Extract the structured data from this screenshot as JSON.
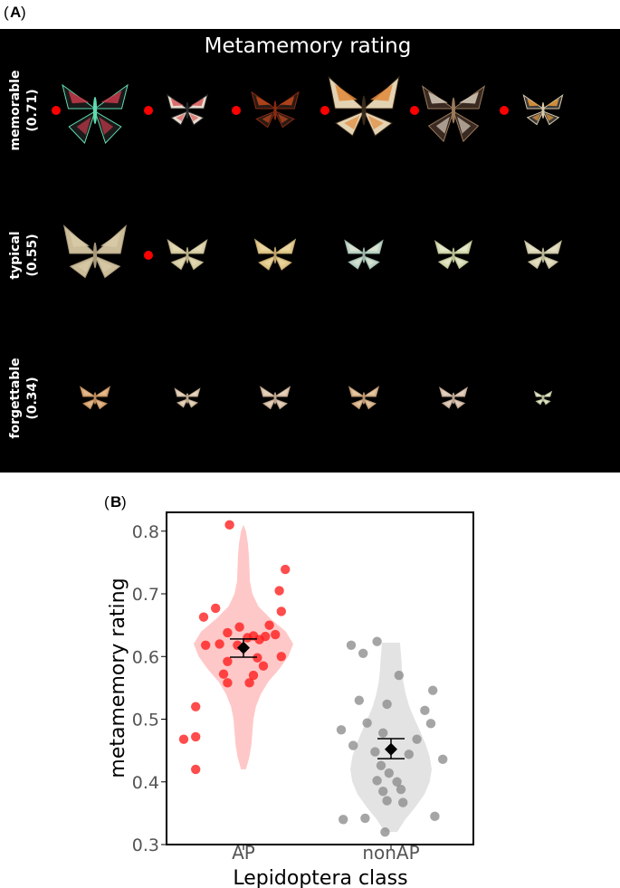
{
  "panel_a": {
    "letter": "A",
    "title": "Metamemory rating",
    "rows": [
      {
        "label": "memorable",
        "value": "(0.71)",
        "items": [
          {
            "palette": [
              "#1a1a1a",
              "#c83a4a",
              "#5fdcb0"
            ],
            "size": 1.0,
            "shape": "swallowtail",
            "red_dot": true
          },
          {
            "palette": [
              "#e6ddd0",
              "#d85a5a",
              "#2a2a2a"
            ],
            "size": 0.62,
            "shape": "round",
            "red_dot": true
          },
          {
            "palette": [
              "#2a1a14",
              "#c24a1c",
              "#8a2a10"
            ],
            "size": 0.72,
            "shape": "round",
            "red_dot": true
          },
          {
            "palette": [
              "#e3d3b3",
              "#e08a3a",
              "#3a2a1a"
            ],
            "size": 1.08,
            "shape": "big",
            "red_dot": true
          },
          {
            "palette": [
              "#3a2a22",
              "#d8ccbc",
              "#9a7a5a"
            ],
            "size": 0.95,
            "shape": "swallowtail",
            "red_dot": true
          },
          {
            "palette": [
              "#3a3a3a",
              "#e89a3a",
              "#d8c8a8"
            ],
            "size": 0.6,
            "shape": "round",
            "red_dot": true
          }
        ]
      },
      {
        "label": "typical",
        "value": "(0.55)",
        "items": [
          {
            "palette": [
              "#cbbd9a",
              "#d9caa8",
              "#a8987a"
            ],
            "size": 0.95,
            "shape": "big",
            "red_dot": false
          },
          {
            "palette": [
              "#d9cfa6",
              "#e3d9b4",
              "#b6aa86"
            ],
            "size": 0.6,
            "shape": "round",
            "red_dot": true
          },
          {
            "palette": [
              "#e0c88a",
              "#ecd7a4",
              "#bba06a"
            ],
            "size": 0.62,
            "shape": "round",
            "red_dot": false
          },
          {
            "palette": [
              "#bdd6c8",
              "#e0e4d2",
              "#9ab4a8"
            ],
            "size": 0.58,
            "shape": "round",
            "red_dot": false
          },
          {
            "palette": [
              "#d6dab0",
              "#e8ead0",
              "#b8bc90"
            ],
            "size": 0.56,
            "shape": "round",
            "red_dot": false
          },
          {
            "palette": [
              "#d8d4b4",
              "#e8e2c6",
              "#bab496"
            ],
            "size": 0.56,
            "shape": "round",
            "red_dot": false
          }
        ]
      },
      {
        "label": "forgettable",
        "value": "(0.34)",
        "items": [
          {
            "palette": [
              "#d9a878",
              "#e6bc90",
              "#b88858"
            ],
            "size": 0.45,
            "shape": "round",
            "red_dot": false
          },
          {
            "palette": [
              "#dcc8ae",
              "#e8d8c2",
              "#b8a48a"
            ],
            "size": 0.38,
            "shape": "round",
            "red_dot": false
          },
          {
            "palette": [
              "#dcc4ac",
              "#e8d4bc",
              "#b8a08a"
            ],
            "size": 0.45,
            "shape": "round",
            "red_dot": false
          },
          {
            "palette": [
              "#d8b48c",
              "#e8caa4",
              "#b89470"
            ],
            "size": 0.45,
            "shape": "round",
            "red_dot": false
          },
          {
            "palette": [
              "#d8c2b0",
              "#e6d2c2",
              "#b8a290"
            ],
            "size": 0.42,
            "shape": "round",
            "red_dot": false
          },
          {
            "palette": [
              "#d8dcb8",
              "#e8ead2",
              "#b8bc98"
            ],
            "size": 0.26,
            "shape": "round",
            "red_dot": false
          }
        ]
      }
    ]
  },
  "chart_data": {
    "type": "scatter",
    "panel_letter": "B",
    "title": "",
    "xlabel": "Lepidoptera class",
    "ylabel": "metamemory rating",
    "ylim": [
      0.3,
      0.83
    ],
    "yticks": [
      0.3,
      0.4,
      0.5,
      0.6,
      0.7,
      0.8
    ],
    "ytick_labels": [
      "0.3",
      "0.4",
      "0.5",
      "0.6",
      "0.7",
      "0.8"
    ],
    "categories": [
      "AP",
      "nonAP"
    ],
    "grid": false,
    "series": [
      {
        "category": "AP",
        "color": "#ff1a1a",
        "violin_color": "#ffc8c8",
        "mean": 0.614,
        "error": [
          0.599,
          0.628
        ],
        "violin": {
          "range": [
            0.42,
            0.81
          ],
          "profile": [
            [
              0.42,
              0.05
            ],
            [
              0.44,
              0.12
            ],
            [
              0.46,
              0.16
            ],
            [
              0.48,
              0.18
            ],
            [
              0.5,
              0.2
            ],
            [
              0.52,
              0.25
            ],
            [
              0.54,
              0.35
            ],
            [
              0.56,
              0.5
            ],
            [
              0.58,
              0.72
            ],
            [
              0.6,
              0.9
            ],
            [
              0.62,
              1.0
            ],
            [
              0.64,
              0.85
            ],
            [
              0.66,
              0.55
            ],
            [
              0.68,
              0.3
            ],
            [
              0.7,
              0.18
            ],
            [
              0.72,
              0.13
            ],
            [
              0.74,
              0.12
            ],
            [
              0.76,
              0.11
            ],
            [
              0.78,
              0.09
            ],
            [
              0.8,
              0.05
            ],
            [
              0.81,
              0.0
            ]
          ]
        },
        "points": [
          [
            -0.07,
            0.81
          ],
          [
            0.21,
            0.739
          ],
          [
            0.18,
            0.705
          ],
          [
            0.19,
            0.672
          ],
          [
            -0.14,
            0.677
          ],
          [
            -0.2,
            0.663
          ],
          [
            0.13,
            0.65
          ],
          [
            -0.02,
            0.647
          ],
          [
            -0.08,
            0.638
          ],
          [
            0.16,
            0.635
          ],
          [
            0.05,
            0.633
          ],
          [
            0.11,
            0.632
          ],
          [
            0.02,
            0.63
          ],
          [
            0.08,
            0.627
          ],
          [
            -0.12,
            0.62
          ],
          [
            -0.19,
            0.618
          ],
          [
            -0.03,
            0.618
          ],
          [
            0.19,
            0.6
          ],
          [
            0.07,
            0.598
          ],
          [
            -0.08,
            0.592
          ],
          [
            0.1,
            0.585
          ],
          [
            -0.1,
            0.572
          ],
          [
            0.05,
            0.57
          ],
          [
            -0.08,
            0.558
          ],
          [
            0.03,
            0.558
          ],
          [
            -0.24,
            0.52
          ],
          [
            -0.24,
            0.472
          ],
          [
            -0.3,
            0.468
          ],
          [
            -0.24,
            0.42
          ]
        ]
      },
      {
        "category": "nonAP",
        "color": "#8c8c8c",
        "violin_color": "#e3e3e3",
        "mean": 0.452,
        "error": [
          0.437,
          0.469
        ],
        "violin": {
          "range": [
            0.32,
            0.622
          ],
          "profile": [
            [
              0.32,
              0.15
            ],
            [
              0.34,
              0.35
            ],
            [
              0.36,
              0.6
            ],
            [
              0.38,
              0.82
            ],
            [
              0.4,
              0.95
            ],
            [
              0.42,
              1.0
            ],
            [
              0.44,
              0.95
            ],
            [
              0.46,
              0.85
            ],
            [
              0.48,
              0.72
            ],
            [
              0.5,
              0.58
            ],
            [
              0.52,
              0.45
            ],
            [
              0.54,
              0.36
            ],
            [
              0.56,
              0.3
            ],
            [
              0.58,
              0.27
            ],
            [
              0.6,
              0.25
            ],
            [
              0.622,
              0.22
            ]
          ]
        },
        "points": [
          [
            -0.07,
            0.624
          ],
          [
            -0.2,
            0.618
          ],
          [
            -0.14,
            0.605
          ],
          [
            0.04,
            0.57
          ],
          [
            0.21,
            0.546
          ],
          [
            -0.16,
            0.53
          ],
          [
            -0.02,
            0.524
          ],
          [
            0.17,
            0.514
          ],
          [
            0.2,
            0.493
          ],
          [
            -0.12,
            0.494
          ],
          [
            -0.25,
            0.483
          ],
          [
            -0.04,
            0.478
          ],
          [
            -0.19,
            0.458
          ],
          [
            0.13,
            0.468
          ],
          [
            -0.08,
            0.448
          ],
          [
            0.09,
            0.444
          ],
          [
            0.26,
            0.436
          ],
          [
            -0.05,
            0.426
          ],
          [
            -0.01,
            0.414
          ],
          [
            0.03,
            0.4
          ],
          [
            -0.07,
            0.402
          ],
          [
            0.05,
            0.388
          ],
          [
            -0.04,
            0.385
          ],
          [
            -0.02,
            0.37
          ],
          [
            0.06,
            0.367
          ],
          [
            -0.24,
            0.34
          ],
          [
            -0.13,
            0.342
          ],
          [
            0.22,
            0.345
          ],
          [
            -0.03,
            0.32
          ]
        ]
      }
    ]
  }
}
